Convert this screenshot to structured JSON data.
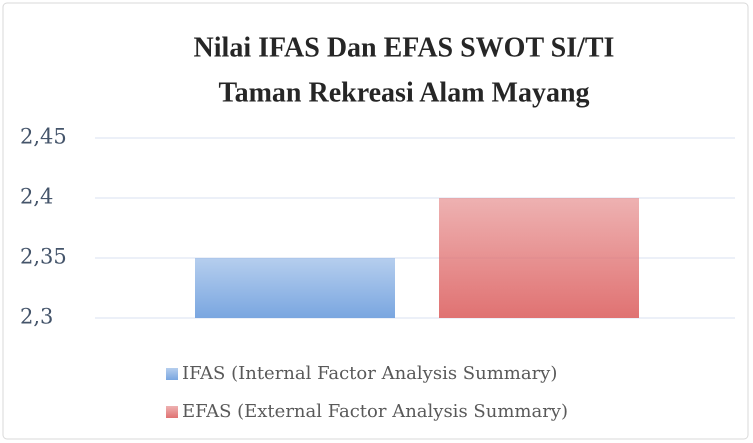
{
  "chart_data": {
    "type": "bar",
    "title": [
      "Nilai IFAS Dan EFAS SWOT SI/TI",
      "Taman Rekreasi Alam Mayang"
    ],
    "categories": [
      null
    ],
    "series": [
      {
        "name": "IFAS (Internal Factor Analysis Summary)",
        "color": "#7aa6e0",
        "values": [
          2.35
        ]
      },
      {
        "name": "EFAS (External Factor Analysis Summary)",
        "color": "#e07272",
        "values": [
          2.4
        ]
      }
    ],
    "ylim": [
      2.3,
      2.45
    ],
    "yticks": [
      {
        "value": 2.3,
        "label": "2,3"
      },
      {
        "value": 2.35,
        "label": "2,35"
      },
      {
        "value": 2.4,
        "label": "2,4"
      },
      {
        "value": 2.45,
        "label": "2,45"
      }
    ],
    "grid": true,
    "legend": "bottom"
  }
}
